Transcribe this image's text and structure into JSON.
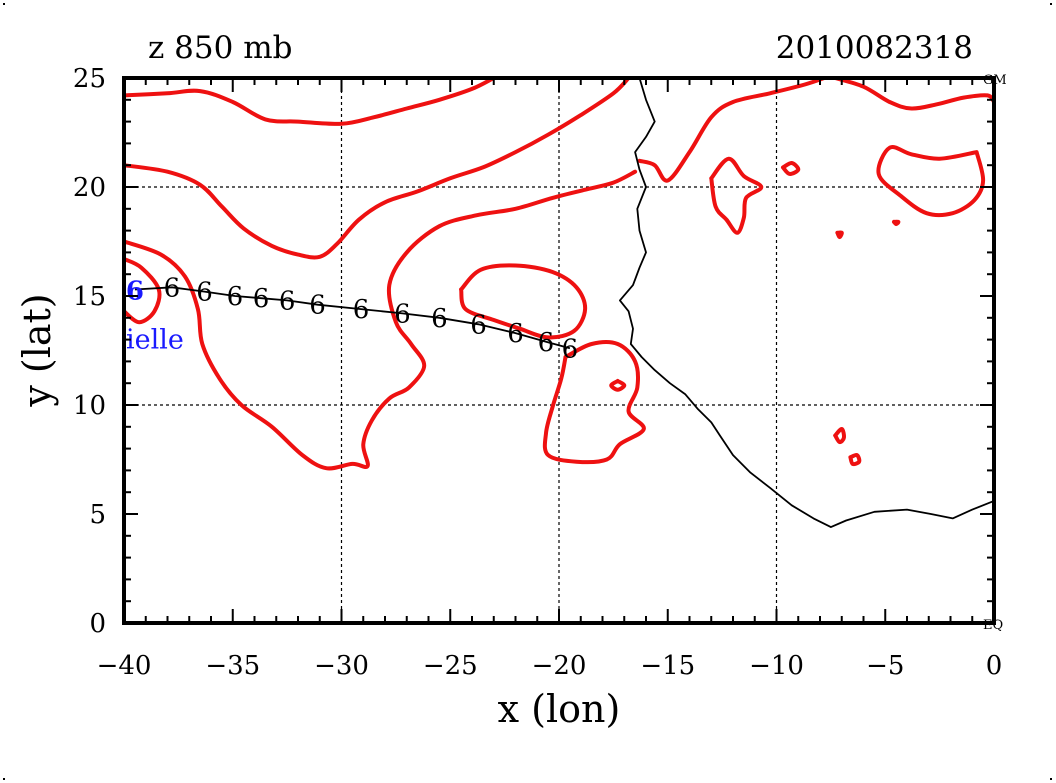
{
  "header": {
    "left_title": "z 850 mb",
    "right_title": "2010082318"
  },
  "corner_labels": {
    "top_right": "GM",
    "bottom_right": "EQ"
  },
  "chart_data": {
    "type": "contour_map",
    "title": "z 850 mb",
    "timestamp": "2010082318",
    "xlabel": "x (lon)",
    "ylabel": "y (lat)",
    "xlim": [
      -40,
      0
    ],
    "ylim": [
      0,
      25
    ],
    "xticks": [
      -40,
      -35,
      -30,
      -25,
      -20,
      -15,
      -10,
      -5,
      0
    ],
    "yticks": [
      0,
      5,
      10,
      15,
      20,
      25
    ],
    "xtick_labels": [
      "−40",
      "−35",
      "−30",
      "−25",
      "−20",
      "−15",
      "−10",
      "−5",
      "0"
    ],
    "ytick_labels": [
      "0",
      "5",
      "10",
      "15",
      "20",
      "25"
    ],
    "grid": {
      "x": [
        -30,
        -20,
        -10
      ],
      "y": [
        10,
        20
      ],
      "style": "dotted"
    },
    "colors": {
      "contour": "#ee1111",
      "coast": "#000000",
      "track": "#000000",
      "storm": "#1a1aff"
    },
    "storm_label": "ielle",
    "track": {
      "marker": "6",
      "points": [
        {
          "lon": -39.5,
          "lat": 15.3
        },
        {
          "lon": -37.8,
          "lat": 15.4
        },
        {
          "lon": -36.3,
          "lat": 15.2
        },
        {
          "lon": -34.9,
          "lat": 15.0
        },
        {
          "lon": -33.7,
          "lat": 14.9
        },
        {
          "lon": -32.5,
          "lat": 14.8
        },
        {
          "lon": -31.1,
          "lat": 14.6
        },
        {
          "lon": -29.1,
          "lat": 14.4
        },
        {
          "lon": -27.2,
          "lat": 14.2
        },
        {
          "lon": -25.5,
          "lat": 14.0
        },
        {
          "lon": -23.7,
          "lat": 13.7
        },
        {
          "lon": -22.0,
          "lat": 13.3
        },
        {
          "lon": -20.6,
          "lat": 12.9
        },
        {
          "lon": -19.5,
          "lat": 12.6
        }
      ]
    },
    "coastline": [
      [
        -16.3,
        25.0
      ],
      [
        -16.0,
        24.0
      ],
      [
        -15.6,
        23.0
      ],
      [
        -16.0,
        22.3
      ],
      [
        -16.5,
        21.6
      ],
      [
        -16.3,
        20.8
      ],
      [
        -16.0,
        20.0
      ],
      [
        -16.4,
        19.0
      ],
      [
        -16.3,
        18.0
      ],
      [
        -16.0,
        17.0
      ],
      [
        -16.3,
        16.3
      ],
      [
        -16.6,
        15.5
      ],
      [
        -17.2,
        14.8
      ],
      [
        -16.8,
        14.3
      ],
      [
        -16.6,
        13.5
      ],
      [
        -16.7,
        12.8
      ],
      [
        -16.2,
        12.2
      ],
      [
        -15.6,
        11.6
      ],
      [
        -14.9,
        11.0
      ],
      [
        -14.2,
        10.5
      ],
      [
        -13.6,
        9.8
      ],
      [
        -13.0,
        9.2
      ],
      [
        -12.6,
        8.6
      ],
      [
        -12.0,
        7.7
      ],
      [
        -11.2,
        6.9
      ],
      [
        -10.3,
        6.2
      ],
      [
        -9.3,
        5.4
      ],
      [
        -8.3,
        4.8
      ],
      [
        -7.5,
        4.4
      ],
      [
        -6.8,
        4.7
      ],
      [
        -5.5,
        5.1
      ],
      [
        -4.0,
        5.2
      ],
      [
        -2.9,
        5.0
      ],
      [
        -1.9,
        4.8
      ],
      [
        -1.0,
        5.2
      ],
      [
        0.0,
        5.6
      ]
    ],
    "contours": [
      [
        [
          -40,
          24.2
        ],
        [
          -38,
          24.3
        ],
        [
          -36.5,
          24.4
        ],
        [
          -35,
          23.9
        ],
        [
          -33.5,
          23.1
        ],
        [
          -32,
          23.0
        ],
        [
          -30,
          22.9
        ],
        [
          -28.5,
          23.2
        ],
        [
          -27,
          23.6
        ],
        [
          -25.5,
          24.0
        ],
        [
          -24,
          24.5
        ],
        [
          -23,
          25.0
        ]
      ],
      [
        [
          -40,
          21.0
        ],
        [
          -38,
          20.7
        ],
        [
          -36.5,
          20.1
        ],
        [
          -35.5,
          19.1
        ],
        [
          -34.5,
          18.1
        ],
        [
          -33.2,
          17.3
        ],
        [
          -32,
          16.9
        ],
        [
          -31.0,
          16.8
        ],
        [
          -30.2,
          17.4
        ],
        [
          -29.2,
          18.5
        ],
        [
          -28.0,
          19.3
        ],
        [
          -26.5,
          19.8
        ],
        [
          -25.0,
          20.4
        ],
        [
          -23.5,
          20.9
        ],
        [
          -22.0,
          21.6
        ],
        [
          -20.5,
          22.4
        ],
        [
          -19.0,
          23.3
        ],
        [
          -17.5,
          24.3
        ],
        [
          -16.8,
          25.0
        ]
      ],
      [
        [
          -40,
          16.7
        ],
        [
          -39.2,
          16.3
        ],
        [
          -38.4,
          15.3
        ],
        [
          -38.6,
          14.3
        ],
        [
          -39.3,
          13.8
        ],
        [
          -40,
          14.3
        ]
      ],
      [
        [
          -40,
          17.5
        ],
        [
          -38.3,
          16.9
        ],
        [
          -37.2,
          15.9
        ],
        [
          -36.6,
          14.4
        ],
        [
          -36.4,
          12.8
        ],
        [
          -35.6,
          11.2
        ],
        [
          -34.6,
          10.0
        ],
        [
          -33.2,
          9.0
        ],
        [
          -31.8,
          7.7
        ],
        [
          -30.7,
          7.1
        ],
        [
          -29.5,
          7.3
        ],
        [
          -28.8,
          7.2
        ],
        [
          -29.0,
          8.2
        ],
        [
          -28.6,
          9.3
        ],
        [
          -27.8,
          10.3
        ],
        [
          -26.9,
          10.8
        ],
        [
          -26.2,
          11.8
        ],
        [
          -26.8,
          12.8
        ],
        [
          -27.5,
          13.8
        ],
        [
          -27.8,
          15.5
        ],
        [
          -27.0,
          17.0
        ],
        [
          -25.5,
          18.2
        ],
        [
          -23.8,
          18.7
        ],
        [
          -22.0,
          19.0
        ],
        [
          -20.3,
          19.5
        ],
        [
          -18.7,
          19.9
        ],
        [
          -17.5,
          20.2
        ],
        [
          -16.5,
          20.7
        ]
      ],
      [
        [
          -24.5,
          15.3
        ],
        [
          -23.6,
          16.2
        ],
        [
          -22.0,
          16.4
        ],
        [
          -20.3,
          16.1
        ],
        [
          -19.2,
          15.4
        ],
        [
          -18.8,
          14.4
        ],
        [
          -19.3,
          13.4
        ],
        [
          -20.5,
          13.1
        ],
        [
          -21.8,
          13.5
        ],
        [
          -23.0,
          13.9
        ],
        [
          -24.3,
          14.4
        ],
        [
          -24.5,
          15.3
        ]
      ],
      [
        [
          -19.7,
          12.2
        ],
        [
          -18.5,
          12.8
        ],
        [
          -17.3,
          12.8
        ],
        [
          -16.5,
          12.0
        ],
        [
          -16.4,
          10.8
        ],
        [
          -16.8,
          9.7
        ],
        [
          -16.1,
          8.9
        ],
        [
          -17.2,
          8.2
        ],
        [
          -17.8,
          7.5
        ],
        [
          -19.2,
          7.4
        ],
        [
          -20.5,
          7.7
        ],
        [
          -20.6,
          8.7
        ],
        [
          -20.3,
          9.9
        ],
        [
          -19.9,
          11.2
        ],
        [
          -19.7,
          12.2
        ]
      ],
      [
        [
          -17.3,
          11.1
        ],
        [
          -17.0,
          10.9
        ],
        [
          -17.3,
          10.7
        ],
        [
          -17.6,
          10.9
        ],
        [
          -17.3,
          11.1
        ]
      ],
      [
        [
          -16.3,
          21.2
        ],
        [
          -15.6,
          21.0
        ],
        [
          -15.0,
          20.3
        ],
        [
          -14.0,
          21.6
        ],
        [
          -13.0,
          23.2
        ],
        [
          -12.0,
          23.9
        ],
        [
          -10.3,
          24.3
        ],
        [
          -8.7,
          24.7
        ],
        [
          -7.8,
          25.0
        ]
      ],
      [
        [
          -7.3,
          25.0
        ],
        [
          -6.0,
          24.6
        ],
        [
          -4.8,
          23.9
        ],
        [
          -3.8,
          23.6
        ],
        [
          -2.6,
          23.8
        ],
        [
          -1.4,
          24.1
        ],
        [
          -0.3,
          24.2
        ],
        [
          0.0,
          23.9
        ]
      ],
      [
        [
          -13.0,
          20.4
        ],
        [
          -12.2,
          21.3
        ],
        [
          -11.5,
          20.5
        ],
        [
          -10.7,
          20.0
        ],
        [
          -11.4,
          19.5
        ],
        [
          -11.5,
          18.6
        ],
        [
          -11.8,
          17.9
        ],
        [
          -12.3,
          18.5
        ],
        [
          -12.8,
          19.1
        ],
        [
          -13.0,
          20.4
        ]
      ],
      [
        [
          -9.7,
          20.9
        ],
        [
          -9.3,
          21.1
        ],
        [
          -9.0,
          20.8
        ],
        [
          -9.4,
          20.6
        ],
        [
          -9.7,
          20.9
        ]
      ],
      [
        [
          -0.8,
          21.6
        ],
        [
          -2.5,
          21.3
        ],
        [
          -3.8,
          21.5
        ],
        [
          -4.8,
          21.8
        ],
        [
          -5.3,
          20.6
        ],
        [
          -4.3,
          19.6
        ],
        [
          -3.1,
          18.8
        ],
        [
          -1.9,
          18.8
        ],
        [
          -0.9,
          19.4
        ],
        [
          -0.5,
          20.3
        ],
        [
          -0.8,
          21.6
        ]
      ],
      [
        [
          -7.3,
          8.6
        ],
        [
          -7.0,
          8.9
        ],
        [
          -6.9,
          8.5
        ],
        [
          -7.1,
          8.3
        ],
        [
          -7.3,
          8.6
        ]
      ],
      [
        [
          -6.6,
          7.6
        ],
        [
          -6.3,
          7.7
        ],
        [
          -6.2,
          7.4
        ],
        [
          -6.5,
          7.3
        ],
        [
          -6.6,
          7.6
        ]
      ],
      [
        [
          -7.2,
          17.9
        ],
        [
          -7.0,
          17.9
        ],
        [
          -7.1,
          17.7
        ],
        [
          -7.2,
          17.9
        ]
      ],
      [
        [
          -4.6,
          18.4
        ],
        [
          -4.4,
          18.4
        ],
        [
          -4.5,
          18.3
        ],
        [
          -4.6,
          18.4
        ]
      ]
    ],
    "axis_colors": {
      "frame": "#000000",
      "grid": "#000000"
    }
  }
}
